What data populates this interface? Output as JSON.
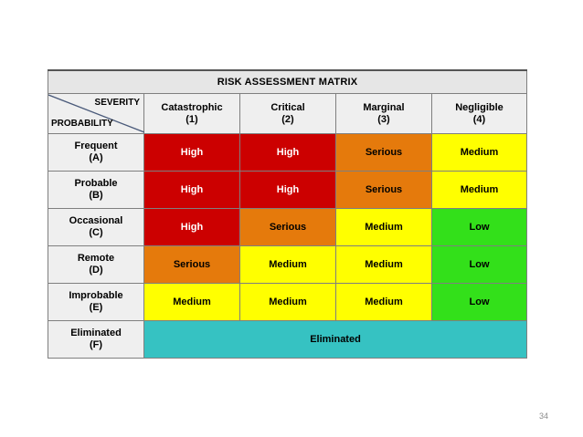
{
  "title": "RISK ASSESSMENT MATRIX",
  "corner": {
    "severity": "SEVERITY",
    "probability": "PROBABILITY"
  },
  "severity": [
    {
      "name": "Catastrophic",
      "code": "(1)"
    },
    {
      "name": "Critical",
      "code": "(2)"
    },
    {
      "name": "Marginal",
      "code": "(3)"
    },
    {
      "name": "Negligible",
      "code": "(4)"
    }
  ],
  "rows": [
    {
      "name": "Frequent",
      "code": "(A)",
      "cells": [
        "High",
        "High",
        "Serious",
        "Medium"
      ]
    },
    {
      "name": "Probable",
      "code": "(B)",
      "cells": [
        "High",
        "High",
        "Serious",
        "Medium"
      ]
    },
    {
      "name": "Occasional",
      "code": "(C)",
      "cells": [
        "High",
        "Serious",
        "Medium",
        "Low"
      ]
    },
    {
      "name": "Remote",
      "code": "(D)",
      "cells": [
        "Serious",
        "Medium",
        "Medium",
        "Low"
      ]
    },
    {
      "name": "Improbable",
      "code": "(E)",
      "cells": [
        "Medium",
        "Medium",
        "Medium",
        "Low"
      ]
    },
    {
      "name": "Eliminated",
      "code": "(F)",
      "cells": [
        "Eliminated"
      ]
    }
  ],
  "colors": {
    "High": "#cc0000",
    "Serious": "#e57a0c",
    "Medium": "#ffff00",
    "Low": "#33e01a",
    "Eliminated": "#36c2c2"
  },
  "page_number": "34"
}
